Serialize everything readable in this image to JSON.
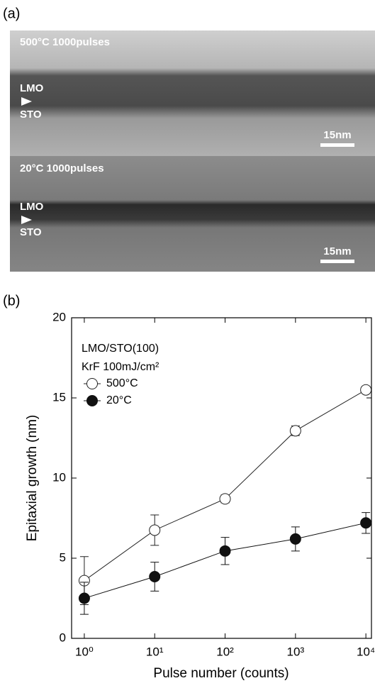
{
  "tem": {
    "label": "(a)",
    "images": [
      {
        "title": "500°C 1000pulses",
        "layer_top": "LMO",
        "layer_bottom": "STO",
        "scale_bar": "15nm"
      },
      {
        "title": "20°C 1000pulses",
        "layer_top": "LMO",
        "layer_bottom": "STO",
        "scale_bar": "15nm"
      }
    ]
  },
  "chart_data": {
    "type": "line",
    "panel_label": "(b)",
    "x_label": "Pulse number (counts)",
    "y_label": "Epitaxial growth (nm)",
    "annotations": [
      "LMO/STO(100)",
      "KrF 100mJ/cm²"
    ],
    "x": [
      1,
      10,
      100,
      1000,
      10000
    ],
    "series": [
      {
        "name": "500°C",
        "color": "#222222",
        "marker": "open-circle",
        "values": [
          3.6,
          6.75,
          8.7,
          12.95,
          15.5
        ],
        "errors": [
          1.5,
          0.95,
          0.25,
          0.3,
          0.2
        ]
      },
      {
        "name": "20°C",
        "color": "#111111",
        "marker": "filled-circle",
        "values": [
          2.5,
          3.85,
          5.45,
          6.2,
          7.2
        ],
        "errors": [
          1.0,
          0.9,
          0.85,
          0.75,
          0.65
        ]
      }
    ],
    "x_log": true,
    "xlim": [
      0.66,
      12000
    ],
    "xticks": [
      {
        "value": 1,
        "label": "10⁰"
      },
      {
        "value": 10,
        "label": "10¹"
      },
      {
        "value": 100,
        "label": "10²"
      },
      {
        "value": 1000,
        "label": "10³"
      },
      {
        "value": 10000,
        "label": "10⁴"
      }
    ],
    "ylim": [
      0,
      20
    ],
    "yticks": [
      0,
      5,
      10,
      15,
      20
    ],
    "grid": false
  }
}
